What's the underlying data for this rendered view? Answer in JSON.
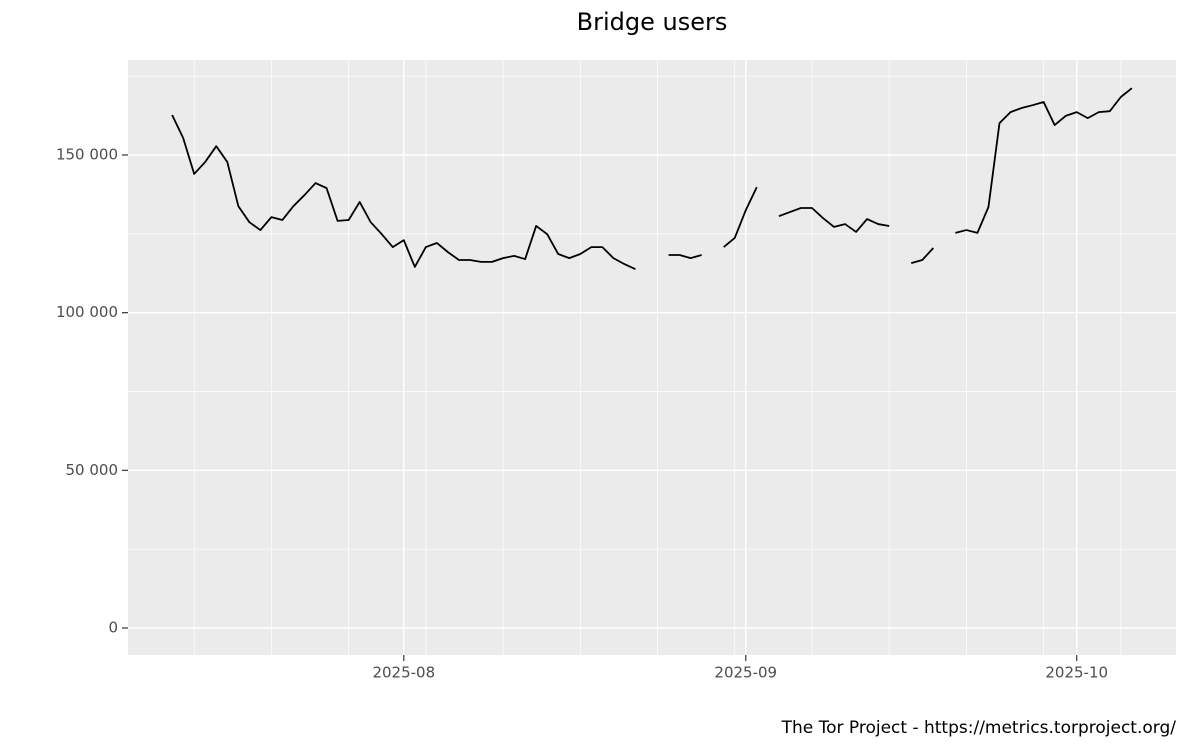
{
  "chart_data": {
    "type": "line",
    "title": "Bridge users",
    "caption": "The Tor Project - https://metrics.torproject.org/",
    "x": [
      "2025-07-11",
      "2025-07-12",
      "2025-07-13",
      "2025-07-14",
      "2025-07-15",
      "2025-07-16",
      "2025-07-17",
      "2025-07-18",
      "2025-07-19",
      "2025-07-20",
      "2025-07-21",
      "2025-07-22",
      "2025-07-23",
      "2025-07-24",
      "2025-07-25",
      "2025-07-26",
      "2025-07-27",
      "2025-07-28",
      "2025-07-29",
      "2025-07-30",
      "2025-07-31",
      "2025-08-01",
      "2025-08-02",
      "2025-08-03",
      "2025-08-04",
      "2025-08-05",
      "2025-08-06",
      "2025-08-07",
      "2025-08-08",
      "2025-08-09",
      "2025-08-10",
      "2025-08-11",
      "2025-08-12",
      "2025-08-13",
      "2025-08-14",
      "2025-08-15",
      "2025-08-16",
      "2025-08-17",
      "2025-08-18",
      "2025-08-19",
      "2025-08-20",
      "2025-08-21",
      "2025-08-22",
      "2025-08-23",
      "2025-08-24",
      "2025-08-25",
      "2025-08-26",
      "2025-08-27",
      "2025-08-28",
      "2025-08-29",
      "2025-08-30",
      "2025-08-31",
      "2025-09-01",
      "2025-09-02",
      "2025-09-03",
      "2025-09-04",
      "2025-09-05",
      "2025-09-06",
      "2025-09-07",
      "2025-09-08",
      "2025-09-09",
      "2025-09-10",
      "2025-09-11",
      "2025-09-12",
      "2025-09-13",
      "2025-09-14",
      "2025-09-15",
      "2025-09-16",
      "2025-09-17",
      "2025-09-18",
      "2025-09-19",
      "2025-09-20",
      "2025-09-21",
      "2025-09-22",
      "2025-09-23",
      "2025-09-24",
      "2025-09-25",
      "2025-09-26",
      "2025-09-27",
      "2025-09-28",
      "2025-09-29",
      "2025-09-30",
      "2025-10-01",
      "2025-10-02",
      "2025-10-03",
      "2025-10-04",
      "2025-10-05",
      "2025-10-06"
    ],
    "series": [
      {
        "name": "Bridge users",
        "color": "#000000",
        "values": [
          162700,
          155400,
          144000,
          147800,
          152800,
          147800,
          133800,
          128700,
          126200,
          130300,
          129400,
          133800,
          137300,
          141100,
          139500,
          129100,
          129400,
          135100,
          128700,
          124900,
          120800,
          123000,
          114500,
          120800,
          122100,
          119200,
          116700,
          116700,
          116100,
          116100,
          117300,
          118000,
          117000,
          127500,
          124900,
          118600,
          117300,
          118600,
          120800,
          120800,
          117300,
          115400,
          113800,
          null,
          null,
          118300,
          118300,
          117300,
          118300,
          null,
          120800,
          123700,
          132500,
          139800,
          null,
          130600,
          131900,
          133200,
          133200,
          130000,
          127200,
          128100,
          125600,
          129700,
          128100,
          127500,
          null,
          115700,
          116700,
          120500,
          null,
          125300,
          126200,
          125300,
          133500,
          160100,
          163600,
          164900,
          165800,
          166800,
          159500,
          162400,
          163600,
          161700,
          163600,
          163900,
          168400,
          171200
        ]
      }
    ],
    "xlim": [
      "2025-07-07",
      "2025-10-10"
    ],
    "xticks": [
      {
        "value": "2025-08-01",
        "label": "2025-08"
      },
      {
        "value": "2025-09-01",
        "label": "2025-09"
      },
      {
        "value": "2025-10-01",
        "label": "2025-10"
      }
    ],
    "ylim": [
      -8560,
      180130
    ],
    "yticks": [
      0,
      {
        "value": 50000,
        "label": "50 000"
      },
      {
        "value": 100000,
        "label": "100 000"
      },
      {
        "value": 150000,
        "label": "150 000"
      }
    ],
    "grid": true
  }
}
